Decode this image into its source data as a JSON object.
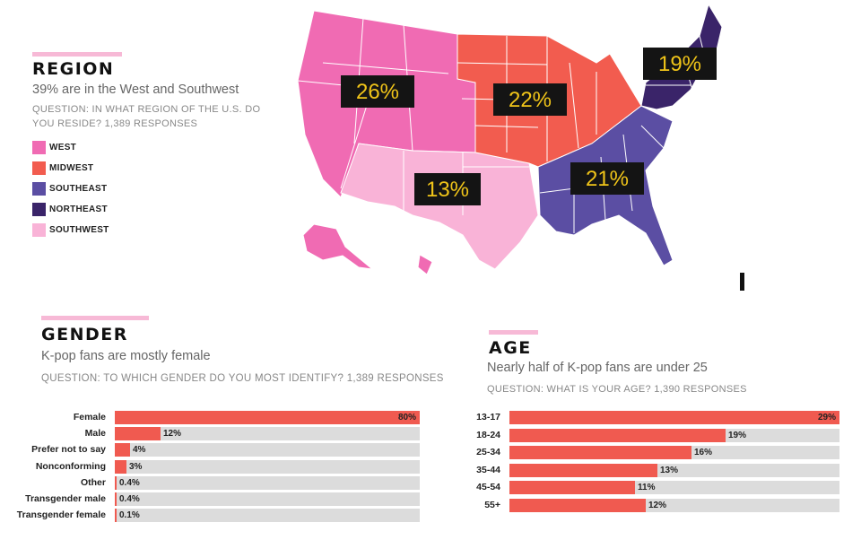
{
  "region": {
    "title": "REGION",
    "subtitle": "39% are in the West and Southwest",
    "question": "QUESTION: IN WHAT REGION OF THE U.S. DO YOU RESIDE? 1,389 RESPONSES"
  },
  "gender": {
    "title": "GENDER",
    "subtitle": "K-pop fans are mostly female",
    "question": "QUESTION: TO WHICH GENDER DO YOU MOST IDENTIFY? 1,389 RESPONSES"
  },
  "age": {
    "title": "AGE",
    "subtitle": "Nearly half of K-pop fans are under 25",
    "question": "QUESTION: WHAT IS YOUR AGE? 1,390 RESPONSES"
  },
  "colors": {
    "west": "#f06bb3",
    "midwest": "#f25c4f",
    "southeast": "#5b4ea3",
    "northeast": "#3a2469",
    "southwest": "#f9b3d7",
    "bar_fill": "#f05a50",
    "bar_track": "#dcdcdc",
    "label_bg": "#141414",
    "label_text": "#f0c419"
  },
  "chart_data": [
    {
      "type": "map",
      "title": "REGION",
      "categories": [
        "West",
        "Midwest",
        "Southeast",
        "Northeast",
        "Southwest"
      ],
      "values": [
        26,
        22,
        21,
        19,
        13
      ],
      "value_labels": [
        "26%",
        "22%",
        "21%",
        "19%",
        "13%"
      ],
      "legend": [
        "WEST",
        "MIDWEST",
        "SOUTHEAST",
        "NORTHEAST",
        "SOUTHWEST"
      ],
      "legend_placement": "left"
    },
    {
      "type": "bar",
      "orientation": "horizontal",
      "title": "GENDER",
      "categories": [
        "Female",
        "Male",
        "Prefer not to say",
        "Nonconforming",
        "Other",
        "Transgender male",
        "Transgender female"
      ],
      "values": [
        80,
        12,
        4,
        3,
        0.4,
        0.4,
        0.1
      ],
      "value_labels": [
        "80%",
        "12%",
        "4%",
        "3%",
        "0.4%",
        "0.4%",
        "0.1%"
      ],
      "xlim": [
        0,
        80
      ]
    },
    {
      "type": "bar",
      "orientation": "horizontal",
      "title": "AGE",
      "categories": [
        "13-17",
        "18-24",
        "25-34",
        "35-44",
        "45-54",
        "55+"
      ],
      "values": [
        29,
        19,
        16,
        13,
        11,
        12
      ],
      "value_labels": [
        "29%",
        "19%",
        "16%",
        "13%",
        "11%",
        "12%"
      ],
      "xlim": [
        0,
        29
      ]
    }
  ]
}
